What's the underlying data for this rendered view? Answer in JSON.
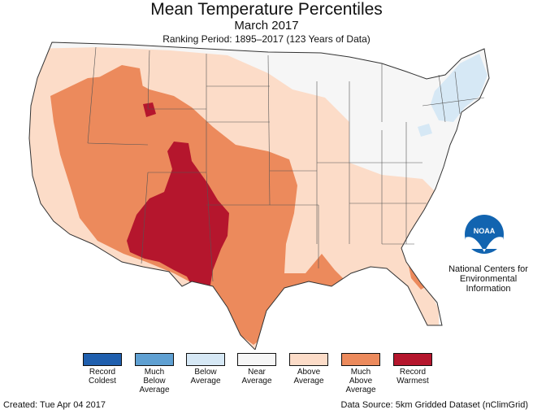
{
  "header": {
    "title": "Mean Temperature Percentiles",
    "subtitle": "March 2017",
    "period": "Ranking Period: 1895–2017 (123 Years of Data)"
  },
  "map": {
    "palette": {
      "record_coldest": "#1f5fae",
      "much_below": "#5fa0d2",
      "below": "#d6e8f5",
      "near": "#f6f6f6",
      "above": "#fcdcc8",
      "much_above": "#ec8a5c",
      "record_warmest": "#b5162d"
    }
  },
  "logo": {
    "text": "NOAA",
    "lines": [
      "National Centers for",
      "Environmental",
      "Information"
    ]
  },
  "legend": [
    {
      "label": "Record\nColdest",
      "color": "#1f5fae"
    },
    {
      "label": "Much\nBelow\nAverage",
      "color": "#5fa0d2"
    },
    {
      "label": "Below\nAverage",
      "color": "#d6e8f5"
    },
    {
      "label": "Near\nAverage",
      "color": "#f6f6f6"
    },
    {
      "label": "Above\nAverage",
      "color": "#fcdcc8"
    },
    {
      "label": "Much\nAbove\nAverage",
      "color": "#ec8a5c"
    },
    {
      "label": "Record\nWarmest",
      "color": "#b5162d"
    }
  ],
  "footer": {
    "created": "Created: Tue Apr 04 2017",
    "source": "Data Source: 5km Gridded Dataset (nClimGrid)"
  }
}
